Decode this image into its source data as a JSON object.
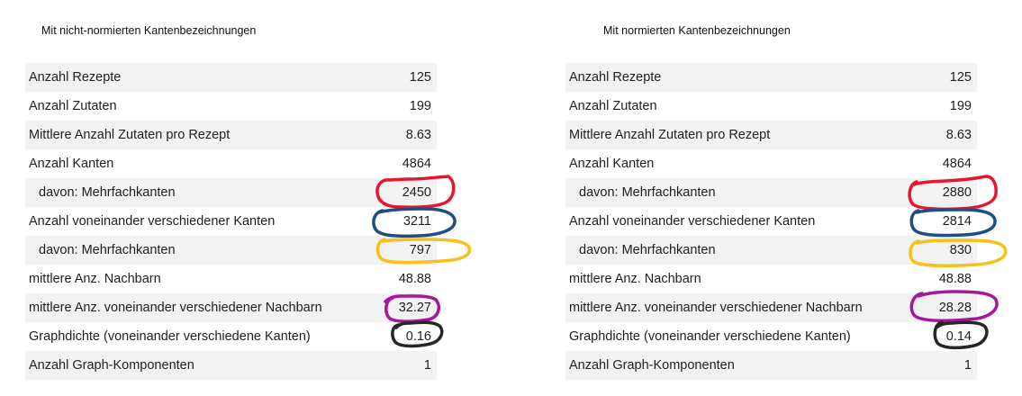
{
  "left_panel": {
    "title": "Mit nicht-normierten Kantenbezeichnungen",
    "rows": [
      {
        "label": "Anzahl Rezepte",
        "value": "125"
      },
      {
        "label": "Anzahl Zutaten",
        "value": "199"
      },
      {
        "label": "Mittlere Anzahl Zutaten pro Rezept",
        "value": "8.63"
      },
      {
        "label": "Anzahl Kanten",
        "value": "4864"
      },
      {
        "label": "davon: Mehrfachkanten",
        "value": "2450"
      },
      {
        "label": "Anzahl voneinander verschiedener Kanten",
        "value": "3211"
      },
      {
        "label": "davon: Mehrfachkanten",
        "value": "797"
      },
      {
        "label": "mittlere Anz. Nachbarn",
        "value": "48.88"
      },
      {
        "label": "mittlere Anz. voneinander verschiedener Nachbarn",
        "value": "32.27"
      },
      {
        "label": "Graphdichte (voneinander verschiedene Kanten)",
        "value": "0.16"
      },
      {
        "label": "Anzahl Graph-Komponenten",
        "value": "1"
      }
    ]
  },
  "right_panel": {
    "title": "Mit normierten Kantenbezeichnungen",
    "rows": [
      {
        "label": "Anzahl Rezepte",
        "value": "125"
      },
      {
        "label": "Anzahl Zutaten",
        "value": "199"
      },
      {
        "label": "Mittlere Anzahl Zutaten pro Rezept",
        "value": "8.63"
      },
      {
        "label": "Anzahl Kanten",
        "value": "4864"
      },
      {
        "label": "davon: Mehrfachkanten",
        "value": "2880"
      },
      {
        "label": "Anzahl voneinander verschiedener Kanten",
        "value": "2814"
      },
      {
        "label": "davon: Mehrfachkanten",
        "value": "830"
      },
      {
        "label": "mittlere Anz. Nachbarn",
        "value": "48.88"
      },
      {
        "label": "mittlere Anz. voneinander verschiedener Nachbarn",
        "value": "28.28"
      },
      {
        "label": "Graphdichte (voneinander verschiedene Kanten)",
        "value": "0.14"
      },
      {
        "label": "Anzahl Graph-Komponenten",
        "value": "1"
      }
    ]
  },
  "highlight_colors": {
    "red": "#e5172f",
    "blue": "#1c4f86",
    "yellow": "#f8c01a",
    "purple": "#a5179b",
    "black": "#262626"
  }
}
